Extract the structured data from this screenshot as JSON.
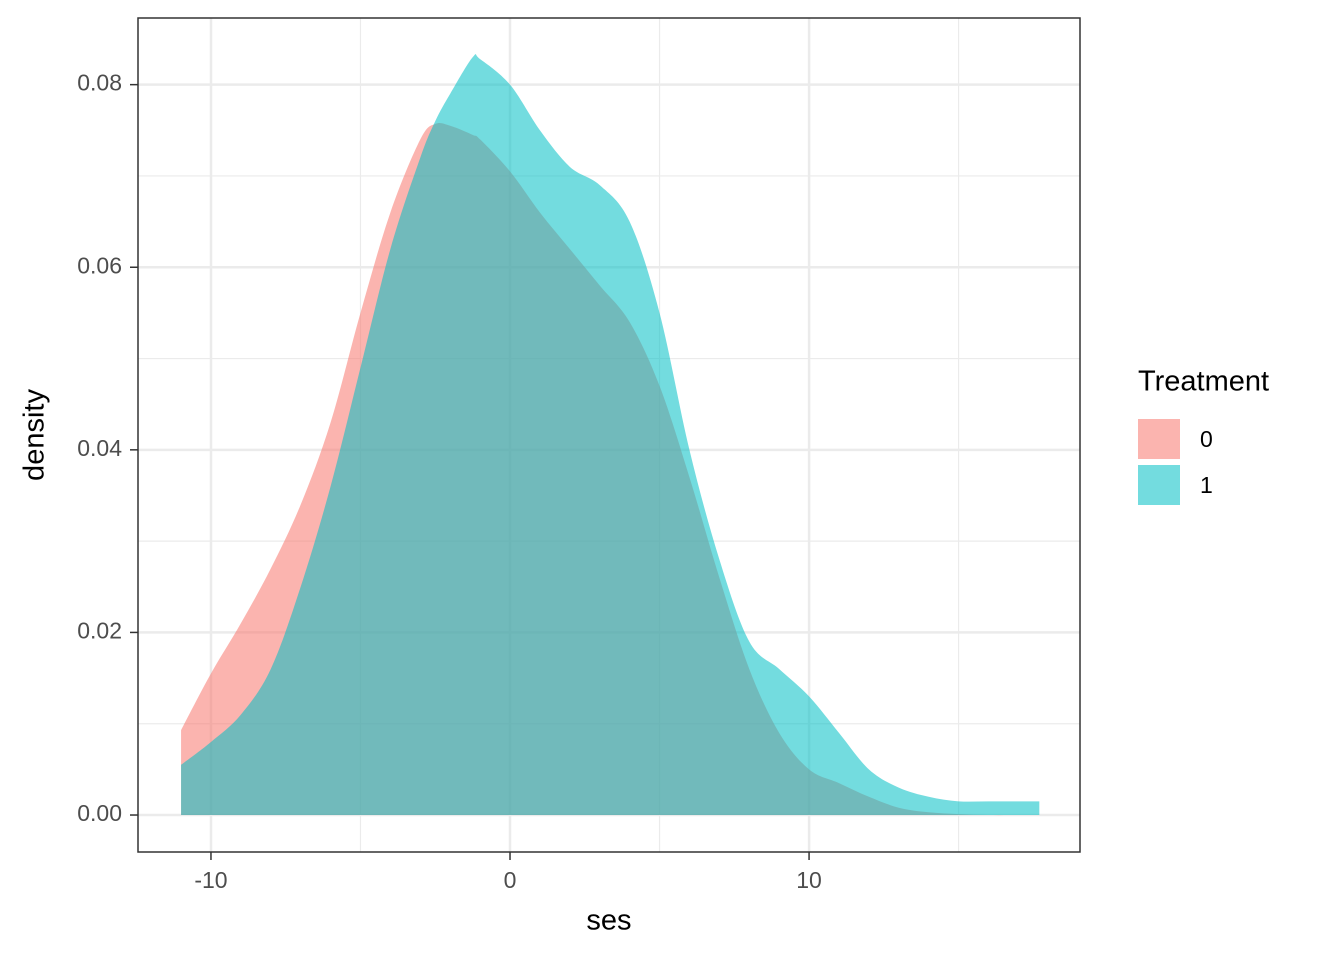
{
  "chart_data": {
    "type": "density",
    "x_label": "ses",
    "y_label": "density",
    "legend_title": "Treatment",
    "x": [
      -11,
      -10,
      -9,
      -8,
      -7,
      -6,
      -5,
      -4,
      -3,
      -2.5,
      -2,
      -1.25,
      -1,
      0,
      1,
      2,
      3,
      4,
      5,
      6,
      7,
      8,
      9,
      10,
      11,
      12,
      13,
      14,
      15,
      16,
      17,
      17.7
    ],
    "series": [
      {
        "name": "0",
        "color": "#F8766D",
        "values": [
          0.0093,
          0.0155,
          0.021,
          0.027,
          0.034,
          0.043,
          0.055,
          0.066,
          0.074,
          0.0757,
          0.0755,
          0.0745,
          0.074,
          0.0705,
          0.066,
          0.062,
          0.058,
          0.054,
          0.047,
          0.037,
          0.026,
          0.016,
          0.009,
          0.005,
          0.0035,
          0.002,
          0.0008,
          0.0003,
          0.0001,
          0.0,
          0.0,
          0.0
        ]
      },
      {
        "name": "1",
        "color": "#00BFC4",
        "values": [
          0.0055,
          0.008,
          0.011,
          0.016,
          0.025,
          0.036,
          0.049,
          0.062,
          0.072,
          0.076,
          0.079,
          0.083,
          0.0828,
          0.08,
          0.075,
          0.071,
          0.069,
          0.065,
          0.055,
          0.04,
          0.028,
          0.019,
          0.016,
          0.013,
          0.009,
          0.005,
          0.003,
          0.002,
          0.0015,
          0.0015,
          0.0015,
          0.0015
        ]
      }
    ],
    "fill_opacity": 0.55,
    "xlim": [
      -12.44,
      19.06
    ],
    "ylim": [
      -0.00405,
      0.0873
    ],
    "xticks": [
      -10,
      0,
      10
    ],
    "yticks": [
      {
        "value": 0,
        "label": "0.00"
      },
      {
        "value": 0.02,
        "label": "0.02"
      },
      {
        "value": 0.04,
        "label": "0.04"
      },
      {
        "value": 0.06,
        "label": "0.06"
      },
      {
        "value": 0.08,
        "label": "0.08"
      }
    ],
    "x_minor_grid": [
      -5,
      5,
      15
    ],
    "y_minor_grid": [
      0.01,
      0.03,
      0.05,
      0.07
    ],
    "grid": true,
    "legend": "right"
  }
}
